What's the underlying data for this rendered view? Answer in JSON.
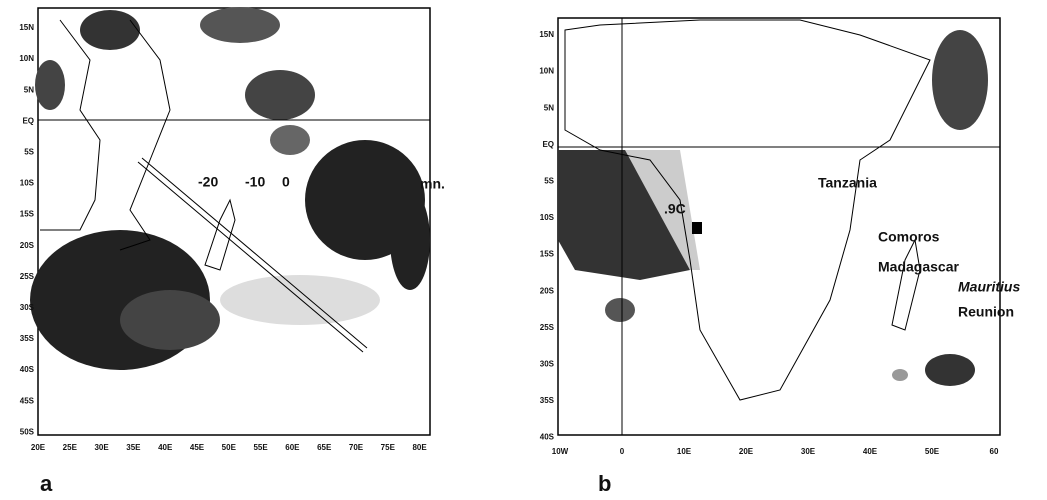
{
  "panels": [
    {
      "label": "a",
      "yticks": [
        "15N",
        "10N",
        "5N",
        "EQ",
        "5S",
        "10S",
        "15S",
        "20S",
        "25S",
        "30S",
        "35S",
        "40S",
        "45S",
        "50S"
      ],
      "xticks": [
        "20E",
        "25E",
        "30E",
        "35E",
        "40E",
        "45E",
        "50E",
        "55E",
        "60E",
        "65E",
        "70E",
        "75E",
        "80E"
      ],
      "annotations": [
        "-20",
        "-10",
        "0",
        "mn."
      ]
    },
    {
      "label": "b",
      "yticks": [
        "15N",
        "10N",
        "5N",
        "EQ",
        "5S",
        "10S",
        "15S",
        "20S",
        "25S",
        "30S",
        "35S",
        "40S"
      ],
      "xticks": [
        "10W",
        "0",
        "10E",
        "20E",
        "30E",
        "40E",
        "50E",
        "60"
      ],
      "annotations": [
        ".9C",
        "Tanzania",
        "Comoros",
        "Madagascar",
        "Mauritius",
        "Reunion"
      ]
    }
  ]
}
